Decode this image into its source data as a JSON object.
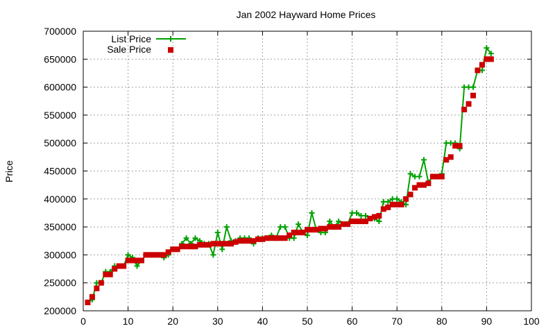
{
  "chart_data": {
    "type": "line",
    "title": "Jan 2002 Hayward Home Prices",
    "xlabel": "",
    "ylabel": "Price",
    "xlim": [
      0,
      100
    ],
    "ylim": [
      200000,
      700000
    ],
    "x_ticks": [
      0,
      10,
      20,
      30,
      40,
      50,
      60,
      70,
      80,
      90,
      100
    ],
    "y_ticks": [
      200000,
      250000,
      300000,
      350000,
      400000,
      450000,
      500000,
      550000,
      600000,
      650000,
      700000
    ],
    "grid": true,
    "legend_position": "top-left",
    "series": [
      {
        "name": "List Price",
        "style": "line-with-plus-markers",
        "color": "#00a000",
        "x": [
          1,
          2,
          3,
          4,
          5,
          6,
          7,
          8,
          9,
          10,
          11,
          12,
          13,
          14,
          15,
          16,
          17,
          18,
          19,
          20,
          21,
          22,
          23,
          24,
          25,
          26,
          27,
          28,
          29,
          30,
          31,
          32,
          33,
          34,
          35,
          36,
          37,
          38,
          39,
          40,
          41,
          42,
          43,
          44,
          45,
          46,
          47,
          48,
          49,
          50,
          51,
          52,
          53,
          54,
          55,
          56,
          57,
          58,
          59,
          60,
          61,
          62,
          63,
          64,
          65,
          66,
          67,
          68,
          69,
          70,
          71,
          72,
          73,
          74,
          75,
          76,
          77,
          78,
          79,
          80,
          81,
          82,
          83,
          84,
          85,
          86,
          87,
          88,
          89,
          90,
          91
        ],
        "y": [
          215000,
          220000,
          250000,
          250000,
          270000,
          270000,
          280000,
          280000,
          280000,
          300000,
          295000,
          280000,
          290000,
          300000,
          300000,
          300000,
          300000,
          295000,
          300000,
          310000,
          310000,
          320000,
          330000,
          320000,
          330000,
          325000,
          320000,
          320000,
          300000,
          340000,
          310000,
          350000,
          325000,
          325000,
          330000,
          330000,
          330000,
          320000,
          330000,
          330000,
          330000,
          335000,
          330000,
          350000,
          350000,
          330000,
          330000,
          355000,
          340000,
          335000,
          375000,
          345000,
          340000,
          340000,
          360000,
          350000,
          360000,
          355000,
          355000,
          375000,
          375000,
          370000,
          370000,
          365000,
          365000,
          360000,
          395000,
          395000,
          400000,
          400000,
          395000,
          390000,
          445000,
          440000,
          440000,
          470000,
          430000,
          440000,
          440000,
          445000,
          500000,
          500000,
          500000,
          490000,
          600000,
          600000,
          600000,
          630000,
          630000,
          670000,
          660000
        ]
      },
      {
        "name": "Sale Price",
        "style": "square-markers",
        "color": "#cc0000",
        "x": [
          1,
          2,
          3,
          4,
          5,
          6,
          7,
          8,
          9,
          10,
          11,
          12,
          13,
          14,
          15,
          16,
          17,
          18,
          19,
          20,
          21,
          22,
          23,
          24,
          25,
          26,
          27,
          28,
          29,
          30,
          31,
          32,
          33,
          34,
          35,
          36,
          37,
          38,
          39,
          40,
          41,
          42,
          43,
          44,
          45,
          46,
          47,
          48,
          49,
          50,
          51,
          52,
          53,
          54,
          55,
          56,
          57,
          58,
          59,
          60,
          61,
          62,
          63,
          64,
          65,
          66,
          67,
          68,
          69,
          70,
          71,
          72,
          73,
          74,
          75,
          76,
          77,
          78,
          79,
          80,
          81,
          82,
          83,
          84,
          85,
          86,
          87,
          88,
          89,
          90,
          91
        ],
        "y": [
          215000,
          225000,
          240000,
          250000,
          265000,
          265000,
          275000,
          280000,
          280000,
          290000,
          290000,
          290000,
          290000,
          300000,
          300000,
          300000,
          300000,
          300000,
          305000,
          310000,
          310000,
          315000,
          315000,
          315000,
          315000,
          318000,
          318000,
          318000,
          320000,
          320000,
          320000,
          320000,
          320000,
          323000,
          325000,
          325000,
          325000,
          325000,
          328000,
          328000,
          330000,
          330000,
          330000,
          330000,
          330000,
          335000,
          340000,
          340000,
          340000,
          345000,
          345000,
          345000,
          347000,
          347000,
          350000,
          350000,
          350000,
          355000,
          355000,
          360000,
          360000,
          360000,
          360000,
          365000,
          368000,
          370000,
          382000,
          385000,
          390000,
          390000,
          390000,
          400000,
          408000,
          420000,
          425000,
          425000,
          428000,
          440000,
          440000,
          440000,
          470000,
          475000,
          495000,
          495000,
          560000,
          570000,
          585000,
          630000,
          640000,
          650000,
          650000
        ]
      }
    ]
  }
}
